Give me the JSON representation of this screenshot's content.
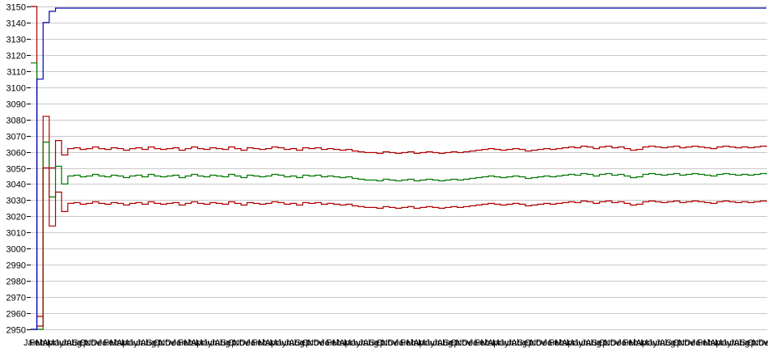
{
  "page": {
    "background": "#ffffff",
    "title": ""
  },
  "chart_data": {
    "type": "line",
    "title": "",
    "xlabel": "",
    "ylabel": "",
    "grid": true,
    "legend": "none",
    "x_label_months": [
      "Jan",
      "Feb",
      "Mar",
      "Apr",
      "May",
      "Jun",
      "Jul",
      "Aug",
      "Sep",
      "Oct",
      "Nov",
      "Dec"
    ],
    "x_label_repeat": 10,
    "x_count": 120,
    "y_axis": {
      "min": 2950,
      "max": 3150,
      "tick_step": 10,
      "tick_labels": [
        "3150",
        "3140",
        "3130",
        "3120",
        "3110",
        "3100",
        "3090",
        "3080",
        "3070",
        "3060",
        "3050",
        "3040",
        "3030",
        "3020",
        "3010",
        "3000",
        "2990",
        "2980",
        "2970",
        "2960",
        "2950"
      ]
    },
    "colors": {
      "cumulative": "#0000aa",
      "upper_limit": "#b00000",
      "center": "#007700",
      "lower_limit": "#b00000",
      "gridline": "#c9c9c9",
      "tick": "#000000",
      "axis_text": "#000000"
    },
    "series": [
      {
        "name": "upper-control-limit",
        "color_key": "upper_limit",
        "hold_last": false,
        "values": [
          3150,
          2958,
          3082,
          3050,
          3067,
          3058,
          3062,
          3062.5,
          3061.5,
          3062,
          3063,
          3062,
          3061.5,
          3062.5,
          3062,
          3061,
          3062,
          3062.5,
          3061.5,
          3063,
          3062,
          3061.5,
          3062,
          3062.5,
          3061,
          3062,
          3063,
          3062,
          3061.5,
          3062.5,
          3062,
          3061.5,
          3063,
          3062,
          3061,
          3062.5,
          3062,
          3061.5,
          3062,
          3063,
          3062.5,
          3061.5,
          3062,
          3061,
          3062.5,
          3062,
          3062.5,
          3061.5,
          3062,
          3061.5,
          3061,
          3061.5,
          3060.5,
          3060,
          3059.5,
          3059.5,
          3059,
          3060,
          3059.5,
          3059,
          3059.5,
          3060,
          3059,
          3059.5,
          3060,
          3059.5,
          3059,
          3059.5,
          3060,
          3059.5,
          3060,
          3060.5,
          3061,
          3061.5,
          3062,
          3061.5,
          3061,
          3061.5,
          3062,
          3061.5,
          3060.5,
          3061,
          3061.5,
          3062,
          3061.5,
          3062,
          3062.5,
          3063,
          3062.5,
          3063.5,
          3063,
          3062,
          3063,
          3063.5,
          3062.5,
          3063,
          3062,
          3061,
          3061.5,
          3063,
          3063.5,
          3063,
          3062.5,
          3063,
          3063.5,
          3062.5,
          3063,
          3063.5,
          3063,
          3062.5,
          3062,
          3063,
          3063.5,
          3063,
          3062.5,
          3063,
          3062.5,
          3063,
          3063.5,
          3063
        ]
      },
      {
        "name": "center-line",
        "color_key": "center",
        "hold_last": false,
        "values": [
          3115,
          2950,
          3066,
          3032,
          3051,
          3040,
          3045,
          3045.5,
          3044.5,
          3045,
          3046,
          3045,
          3044.5,
          3045.5,
          3045,
          3044,
          3045,
          3045.5,
          3044.5,
          3046,
          3045,
          3044.5,
          3045,
          3045.5,
          3044,
          3045,
          3046,
          3045,
          3044.5,
          3045.5,
          3045,
          3044.5,
          3046,
          3045,
          3044,
          3045.5,
          3045,
          3044.5,
          3045,
          3046,
          3045.5,
          3044.5,
          3045,
          3044,
          3045.5,
          3045,
          3045.5,
          3044.5,
          3045,
          3044.5,
          3044,
          3044.5,
          3043.5,
          3043,
          3042.5,
          3042.5,
          3042,
          3043,
          3042.5,
          3042,
          3042.5,
          3043,
          3042,
          3042.5,
          3043,
          3042.5,
          3042,
          3042.5,
          3043,
          3042.5,
          3043,
          3043.5,
          3044,
          3044.5,
          3045,
          3044.5,
          3044,
          3044.5,
          3045,
          3044.5,
          3043.5,
          3044,
          3044.5,
          3045,
          3044.5,
          3045,
          3045.5,
          3046,
          3045.5,
          3046.5,
          3046,
          3045,
          3046,
          3046.5,
          3045.5,
          3046,
          3045,
          3044,
          3044.5,
          3046,
          3046.5,
          3046,
          3045.5,
          3046,
          3046.5,
          3045.5,
          3046,
          3046.5,
          3046,
          3045.5,
          3045,
          3046,
          3046.5,
          3046,
          3045.5,
          3046,
          3045.5,
          3046,
          3046.5,
          3046
        ]
      },
      {
        "name": "lower-control-limit",
        "color_key": "lower_limit",
        "hold_last": false,
        "values": [
          2950,
          2952,
          3050,
          3014,
          3035,
          3023,
          3028,
          3028.5,
          3027.5,
          3028,
          3029,
          3028,
          3027.5,
          3028.5,
          3028,
          3027,
          3028,
          3028.5,
          3027.5,
          3029,
          3028,
          3027.5,
          3028,
          3028.5,
          3027,
          3028,
          3029,
          3028,
          3027.5,
          3028.5,
          3028,
          3027.5,
          3029,
          3028,
          3027,
          3028.5,
          3028,
          3027.5,
          3028,
          3029,
          3028.5,
          3027.5,
          3028,
          3027,
          3028.5,
          3028,
          3028.5,
          3027.5,
          3028,
          3027.5,
          3027,
          3027.5,
          3026.5,
          3026,
          3025.5,
          3025.5,
          3025,
          3026,
          3025.5,
          3025,
          3025.5,
          3026,
          3025,
          3025.5,
          3026,
          3025.5,
          3025,
          3025.5,
          3026,
          3025.5,
          3026,
          3026.5,
          3027,
          3027.5,
          3028,
          3027.5,
          3027,
          3027.5,
          3028,
          3027.5,
          3026.5,
          3027,
          3027.5,
          3028,
          3027.5,
          3028,
          3028.5,
          3029,
          3028.5,
          3029.5,
          3029,
          3028,
          3029,
          3029.5,
          3028.5,
          3029,
          3028,
          3027,
          3027.5,
          3029,
          3029.5,
          3029,
          3028.5,
          3029,
          3029.5,
          3028.5,
          3029,
          3029.5,
          3029,
          3028.5,
          3028,
          3029,
          3029.5,
          3029,
          3028.5,
          3029,
          3028.5,
          3029,
          3029.5,
          3029
        ]
      },
      {
        "name": "cumulative-line",
        "color_key": "cumulative",
        "hold_last": true,
        "values": [
          2950,
          3105,
          3140,
          3147,
          3149
        ]
      }
    ]
  }
}
